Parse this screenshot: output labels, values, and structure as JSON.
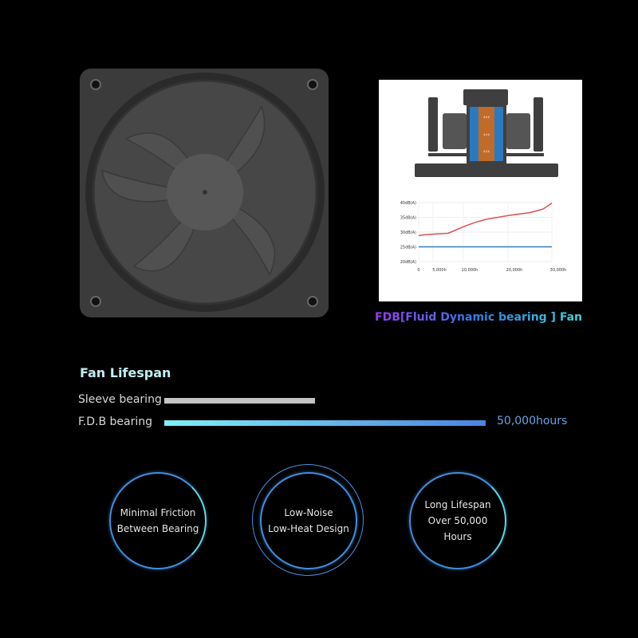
{
  "fdb_title": "FDB[Fluid Dynamic bearing ] Fan",
  "lifespan": {
    "title": "Fan Lifespan",
    "max_hours": 50000,
    "bars": [
      {
        "label": "Sleeve bearing",
        "fraction": 0.47,
        "color": "#c4c4c4"
      },
      {
        "label": "F.D.B bearing",
        "fraction": 1.0,
        "value_label": "50,000hours",
        "color": "#4a84e0"
      }
    ]
  },
  "features": [
    {
      "lines": [
        "Minimal Friction",
        "Between Bearing"
      ]
    },
    {
      "lines": [
        "Low-Noise",
        "Low-Heat Design"
      ]
    },
    {
      "lines": [
        "Long Lifespan",
        "Over 50,000",
        "Hours"
      ]
    }
  ],
  "chart_data": {
    "type": "line",
    "x_ticks": [
      0,
      5000,
      10000,
      20000,
      30000
    ],
    "x_tick_labels": [
      "0",
      "5,000h",
      "10,000h",
      "20,000h",
      "30,000h"
    ],
    "y_ticks": [
      20,
      25,
      30,
      35,
      40
    ],
    "y_tick_labels": [
      "20dB(A)",
      "25dB(A)",
      "30dB(A)",
      "35dB(A)",
      "40dB(A)"
    ],
    "ylim": [
      20,
      40
    ],
    "grid": true,
    "series": [
      {
        "color": "#d9534f",
        "x": [
          0,
          2500,
          5000,
          7500,
          10000,
          12500,
          15000,
          20000,
          25000,
          28000,
          30000
        ],
        "y": [
          28.8,
          29.1,
          29.3,
          29.6,
          31.8,
          33.2,
          34.3,
          35.6,
          36.6,
          37.8,
          39.8
        ]
      },
      {
        "color": "#2f7fc1",
        "x": [
          0,
          30000
        ],
        "y": [
          25,
          25
        ]
      }
    ]
  },
  "colors": {
    "background": "#000000",
    "fan_body": "#3b3b3b",
    "accent": "#3f8fe0"
  }
}
